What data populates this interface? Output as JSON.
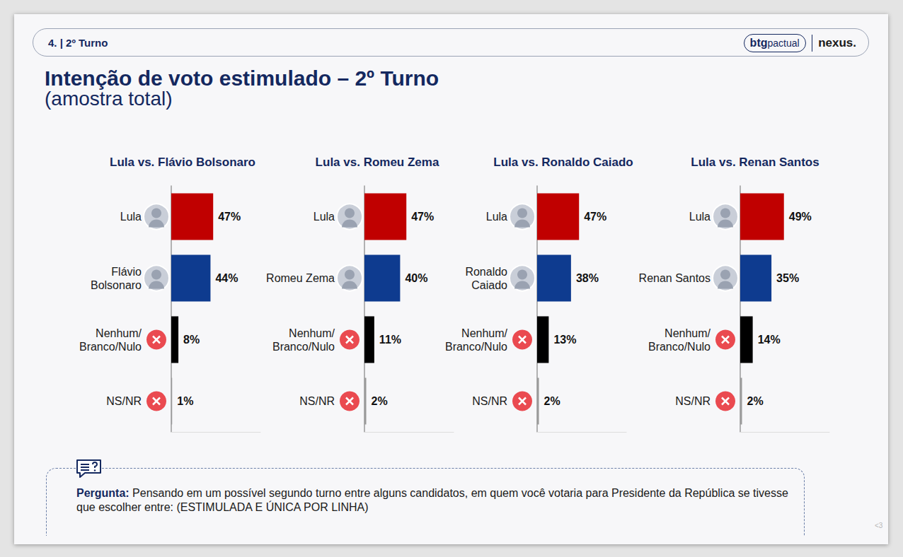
{
  "page": {
    "section": "4. | 2º Turno",
    "brands": [
      "btg pactual",
      "nexus."
    ],
    "title": "Intenção de voto estimulado – 2º Turno",
    "subtitle": "(amostra total)",
    "question_label": "Pergunta:",
    "question": "Pensando em um possível segundo turno entre alguns candidatos, em quem você votaria para Presidente da República se tivesse que escolher entre: (ESTIMULADA E ÚNICA POR LINHA)",
    "page_number": "<3"
  },
  "chart_data": [
    {
      "type": "bar",
      "title": "Lula vs. Flávio Bolsonaro",
      "orientation": "horizontal",
      "categories": [
        "Lula",
        "Flávio Bolsonaro",
        "Nenhum/Branco/Nulo",
        "NS/NR"
      ],
      "values": [
        47,
        44,
        8,
        1
      ],
      "value_labels": [
        "47%",
        "44%",
        "8%",
        "1%"
      ],
      "colors": [
        "#c00000",
        "#0e3b8f",
        "#000000",
        "#9a9a9a"
      ],
      "xlim": [
        0,
        100
      ],
      "data_labels": true,
      "tick_labels": "y",
      "grid": false
    },
    {
      "type": "bar",
      "title": "Lula vs. Romeu Zema",
      "orientation": "horizontal",
      "categories": [
        "Lula",
        "Romeu Zema",
        "Nenhum/Branco/Nulo",
        "NS/NR"
      ],
      "values": [
        47,
        40,
        11,
        2
      ],
      "value_labels": [
        "47%",
        "40%",
        "11%",
        "2%"
      ],
      "colors": [
        "#c00000",
        "#0e3b8f",
        "#000000",
        "#9a9a9a"
      ],
      "xlim": [
        0,
        100
      ],
      "data_labels": true,
      "tick_labels": "y",
      "grid": false
    },
    {
      "type": "bar",
      "title": "Lula vs. Ronaldo Caiado",
      "orientation": "horizontal",
      "categories": [
        "Lula",
        "Ronaldo Caiado",
        "Nenhum/Branco/Nulo",
        "NS/NR"
      ],
      "values": [
        47,
        38,
        13,
        2
      ],
      "value_labels": [
        "47%",
        "38%",
        "13%",
        "2%"
      ],
      "colors": [
        "#c00000",
        "#0e3b8f",
        "#000000",
        "#9a9a9a"
      ],
      "xlim": [
        0,
        100
      ],
      "data_labels": true,
      "tick_labels": "y",
      "grid": false
    },
    {
      "type": "bar",
      "title": "Lula vs. Renan Santos",
      "orientation": "horizontal",
      "categories": [
        "Lula",
        "Renan Santos",
        "Nenhum/Branco/Nulo",
        "NS/NR"
      ],
      "values": [
        49,
        35,
        14,
        2
      ],
      "value_labels": [
        "49%",
        "35%",
        "14%",
        "2%"
      ],
      "colors": [
        "#c00000",
        "#0e3b8f",
        "#000000",
        "#9a9a9a"
      ],
      "xlim": [
        0,
        100
      ],
      "data_labels": true,
      "tick_labels": "y",
      "grid": false
    }
  ]
}
